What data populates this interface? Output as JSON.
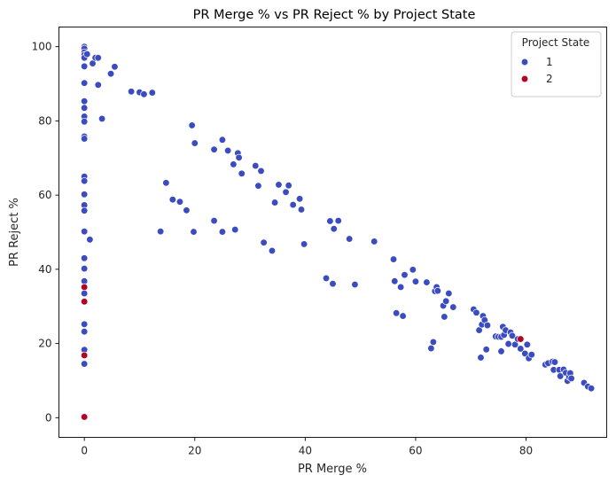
{
  "chart_data": {
    "type": "scatter",
    "title": "PR Merge % vs PR Reject % by Project State",
    "xlabel": "PR Merge %",
    "ylabel": "PR Reject %",
    "xlim": [
      -4.6,
      94.6
    ],
    "ylim": [
      -5.3,
      105.3
    ],
    "xticks": [
      0,
      20,
      40,
      60,
      80
    ],
    "yticks": [
      0,
      20,
      40,
      60,
      80,
      100
    ],
    "grid": false,
    "legend": {
      "title": "Project State",
      "placement": "top-right"
    },
    "series": [
      {
        "name": "1",
        "color": "#3b4cc0",
        "points": [
          [
            0,
            100
          ],
          [
            0,
            99.5
          ],
          [
            0,
            98.5
          ],
          [
            0,
            97.8
          ],
          [
            0,
            97
          ],
          [
            0,
            94.7
          ],
          [
            0,
            90.2
          ],
          [
            0,
            85.3
          ],
          [
            0,
            83.5
          ],
          [
            0,
            81.2
          ],
          [
            0,
            79.8
          ],
          [
            0,
            75.8
          ],
          [
            0,
            75.2
          ],
          [
            0,
            65
          ],
          [
            0,
            63.8
          ],
          [
            0,
            60.2
          ],
          [
            0,
            57.3
          ],
          [
            0,
            55.8
          ],
          [
            0,
            50.2
          ],
          [
            0,
            43
          ],
          [
            0,
            40.2
          ],
          [
            0,
            36.8
          ],
          [
            0,
            33.5
          ],
          [
            0,
            25.2
          ],
          [
            0,
            23.2
          ],
          [
            0,
            18.3
          ],
          [
            0,
            14.5
          ],
          [
            0.5,
            98
          ],
          [
            1,
            48
          ],
          [
            1.5,
            95.5
          ],
          [
            2,
            97
          ],
          [
            2.5,
            97
          ],
          [
            2.5,
            89.7
          ],
          [
            3.2,
            80.6
          ],
          [
            4.8,
            92.7
          ],
          [
            5.5,
            94.6
          ],
          [
            8.5,
            87.9
          ],
          [
            10,
            87.7
          ],
          [
            10.8,
            87.2
          ],
          [
            12.3,
            87.6
          ],
          [
            13.8,
            50.2
          ],
          [
            14.8,
            63.3
          ],
          [
            16,
            58.8
          ],
          [
            17.3,
            58.2
          ],
          [
            18.5,
            55.9
          ],
          [
            19.5,
            78.8
          ],
          [
            19.8,
            50.1
          ],
          [
            20,
            74
          ],
          [
            23.5,
            53.1
          ],
          [
            23.5,
            72.3
          ],
          [
            25,
            74.9
          ],
          [
            25,
            50.1
          ],
          [
            26,
            72
          ],
          [
            27,
            68.3
          ],
          [
            27.3,
            50.7
          ],
          [
            27.8,
            71.3
          ],
          [
            28,
            70.1
          ],
          [
            28.5,
            65.8
          ],
          [
            31,
            67.9
          ],
          [
            31.5,
            62.5
          ],
          [
            32,
            66.5
          ],
          [
            32.5,
            47.2
          ],
          [
            34,
            45
          ],
          [
            34.5,
            58
          ],
          [
            35.2,
            62.8
          ],
          [
            36.5,
            60.8
          ],
          [
            37,
            62.6
          ],
          [
            37.8,
            57.4
          ],
          [
            39,
            59
          ],
          [
            39.3,
            56.1
          ],
          [
            39.8,
            46.8
          ],
          [
            43.8,
            37.6
          ],
          [
            44.5,
            53
          ],
          [
            45,
            36.1
          ],
          [
            45.2,
            50.9
          ],
          [
            46,
            53.1
          ],
          [
            48,
            48.2
          ],
          [
            49,
            35.9
          ],
          [
            52.5,
            47.5
          ],
          [
            56,
            42.7
          ],
          [
            56.2,
            36.8
          ],
          [
            56.5,
            28.2
          ],
          [
            57.3,
            35.2
          ],
          [
            57.7,
            27.4
          ],
          [
            58,
            38.5
          ],
          [
            59.5,
            39.9
          ],
          [
            60,
            36.7
          ],
          [
            62,
            36.5
          ],
          [
            62.8,
            18.7
          ],
          [
            63.2,
            20.4
          ],
          [
            63.5,
            34.1
          ],
          [
            63.8,
            35.2
          ],
          [
            64,
            34.2
          ],
          [
            65,
            30.2
          ],
          [
            65.2,
            27.2
          ],
          [
            65.5,
            31.4
          ],
          [
            66,
            33.5
          ],
          [
            66.8,
            29.8
          ],
          [
            70.5,
            29.2
          ],
          [
            71,
            28.3
          ],
          [
            71.5,
            23.6
          ],
          [
            71.8,
            16.2
          ],
          [
            72,
            25.1
          ],
          [
            72.2,
            27.4
          ],
          [
            72.5,
            26.3
          ],
          [
            72.8,
            18.4
          ],
          [
            73,
            24.9
          ],
          [
            74.5,
            21.9
          ],
          [
            75,
            21.8
          ],
          [
            75.5,
            21.8
          ],
          [
            75.5,
            17.9
          ],
          [
            75.8,
            24.5
          ],
          [
            76,
            22.3
          ],
          [
            76.3,
            23.6
          ],
          [
            76.8,
            19.9
          ],
          [
            77.2,
            23
          ],
          [
            77.5,
            22.1
          ],
          [
            78,
            19.7
          ],
          [
            78.5,
            21.2
          ],
          [
            79,
            18.6
          ],
          [
            79.8,
            17.3
          ],
          [
            80.2,
            19.7
          ],
          [
            80.5,
            16
          ],
          [
            81,
            17
          ],
          [
            83.5,
            14.3
          ],
          [
            84,
            14.7
          ],
          [
            84.8,
            15.1
          ],
          [
            85,
            12.9
          ],
          [
            85.2,
            15
          ],
          [
            86,
            12.9
          ],
          [
            86.2,
            11.2
          ],
          [
            86.8,
            13
          ],
          [
            87.2,
            12.1
          ],
          [
            87.5,
            9.9
          ],
          [
            87.8,
            11
          ],
          [
            88,
            12
          ],
          [
            88.2,
            10.6
          ],
          [
            90.5,
            9.4
          ],
          [
            91.2,
            8.4
          ],
          [
            91.8,
            7.9
          ]
        ]
      },
      {
        "name": "2",
        "color": "#b40426",
        "points": [
          [
            0,
            35.2
          ],
          [
            0,
            31.3
          ],
          [
            0,
            16.8
          ],
          [
            0,
            0.2
          ],
          [
            79,
            21.2
          ]
        ]
      }
    ]
  }
}
